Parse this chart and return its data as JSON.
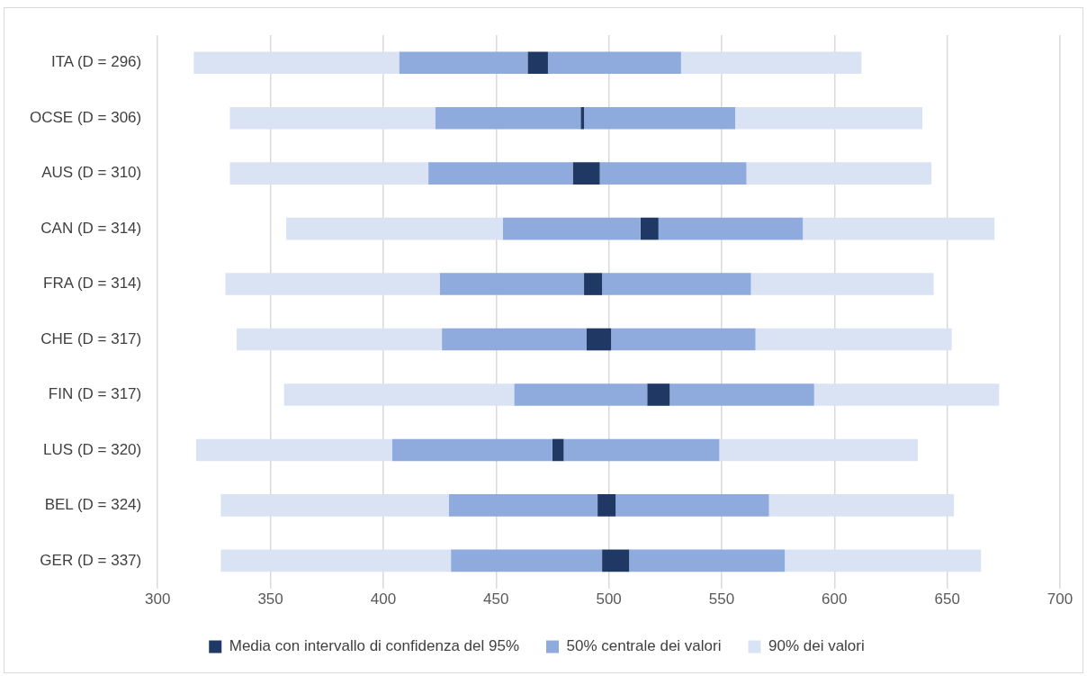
{
  "chart_data": {
    "type": "bar",
    "orientation": "horizontal",
    "categories": [
      "ITA (D = 296)",
      "OCSE (D = 306)",
      "AUS (D = 310)",
      "CAN (D = 314)",
      "FRA (D = 314)",
      "CHE (D = 317)",
      "FIN (D = 317)",
      "LUS (D = 320)",
      "BEL (D = 324)",
      "GER (D = 337)"
    ],
    "series": [
      {
        "color": "#dae3f3",
        "base": [
          316,
          332,
          332,
          357,
          330,
          335,
          356,
          317,
          328,
          328
        ],
        "values": [
          91,
          91,
          88,
          96,
          95,
          91,
          102,
          87,
          101,
          102
        ]
      },
      {
        "color": "#8faadc",
        "base": [
          407,
          423,
          420,
          453,
          425,
          426,
          458,
          404,
          429,
          430
        ],
        "values": [
          57,
          64.5,
          64,
          61,
          64,
          64,
          59,
          71,
          66,
          67
        ]
      },
      {
        "name": "Media con intervallo di confidenza del 95%",
        "color": "#1f3864",
        "base": [
          464,
          487.5,
          484,
          514,
          489,
          490,
          517,
          475,
          495,
          497
        ],
        "values": [
          9,
          1.5,
          12,
          8,
          8,
          11,
          10,
          5,
          8,
          12
        ]
      },
      {
        "name": "50% centrale dei valori",
        "color": "#8faadc",
        "base": [
          473,
          489,
          496,
          522,
          497,
          501,
          527,
          480,
          503,
          509
        ],
        "values": [
          59,
          67,
          65,
          64,
          66,
          64,
          64,
          69,
          68,
          69
        ]
      },
      {
        "name": "90% dei valori",
        "color": "#dae3f3",
        "base": [
          532,
          556,
          561,
          586,
          563,
          565,
          591,
          549,
          571,
          578
        ],
        "values": [
          80,
          83,
          82,
          85,
          81,
          87,
          82,
          88,
          82,
          87
        ]
      }
    ],
    "xlim": [
      300,
      700
    ],
    "xticks": [
      300,
      350,
      400,
      450,
      500,
      550,
      600,
      650,
      700
    ],
    "grid": "x",
    "legend": "bottom"
  }
}
